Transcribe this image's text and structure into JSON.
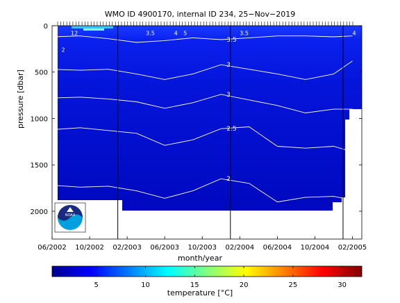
{
  "chart_data": {
    "type": "heatmap",
    "title": "WMO ID 4900170, internal ID 234, 25−Nov−2019",
    "xlabel": "month/year",
    "ylabel": "pressure [dbar]",
    "colorbar_label": "temperature [°C]",
    "x_tick_labels": [
      "06/2002",
      "10/2002",
      "02/2003",
      "06/2003",
      "10/2003",
      "02/2004",
      "06/2004",
      "10/2004",
      "02/2005"
    ],
    "y_tick_labels": [
      "0",
      "500",
      "1000",
      "1500",
      "2000"
    ],
    "y_ticks": [
      0,
      500,
      1000,
      1500,
      2000
    ],
    "ylim": [
      0,
      2300
    ],
    "x_range": [
      "2002-06",
      "2005-03"
    ],
    "colorbar_ticks": [
      5,
      10,
      15,
      20,
      25,
      30
    ],
    "colorbar_range": [
      0.5,
      32
    ],
    "colormap": "jet",
    "year_lines": [
      "2003-01",
      "2004-01",
      "2005-01"
    ],
    "contour_levels": [
      {
        "value": 2.0,
        "label": "2"
      },
      {
        "value": 2.5,
        "label": "2.5"
      },
      {
        "value": 3.0,
        "label": "3"
      },
      {
        "value": 3.5,
        "label": "3.5"
      },
      {
        "value": 4.0,
        "label": "4"
      },
      {
        "value": 5.0,
        "label": "5"
      },
      {
        "value": 10.0,
        "label": "10"
      },
      {
        "value": 12.0,
        "label": "12"
      }
    ],
    "contours_approx_pressure": {
      "3.5": {
        "months": [
          "2002-06",
          "2002-09",
          "2002-12",
          "2003-03",
          "2003-06",
          "2003-09",
          "2003-12",
          "2004-03",
          "2004-06",
          "2004-09",
          "2004-12",
          "2005-02"
        ],
        "pressure": [
          120,
          110,
          140,
          180,
          160,
          130,
          150,
          130,
          110,
          110,
          120,
          110
        ]
      },
      "3": {
        "months": [
          "2002-06",
          "2002-09",
          "2002-12",
          "2003-03",
          "2003-06",
          "2003-09",
          "2003-12",
          "2004-03",
          "2004-06",
          "2004-09",
          "2004-12",
          "2005-02"
        ],
        "pressure": [
          470,
          480,
          470,
          520,
          580,
          520,
          420,
          470,
          520,
          580,
          520,
          380
        ]
      },
      "3b": {
        "months": [
          "2002-06",
          "2002-09",
          "2002-12",
          "2003-03",
          "2003-06",
          "2003-09",
          "2003-12",
          "2004-03",
          "2004-06",
          "2004-09",
          "2004-12",
          "2005-02"
        ],
        "pressure": [
          780,
          770,
          790,
          820,
          890,
          830,
          740,
          800,
          860,
          940,
          900,
          900
        ]
      },
      "2.5": {
        "months": [
          "2002-06",
          "2002-09",
          "2002-12",
          "2003-03",
          "2003-06",
          "2003-09",
          "2003-12",
          "2004-03",
          "2004-06",
          "2004-09",
          "2004-12",
          "2005-02"
        ],
        "pressure": [
          1120,
          1100,
          1130,
          1160,
          1290,
          1230,
          1110,
          1090,
          1300,
          1320,
          1300,
          1360
        ]
      },
      "2": {
        "months": [
          "2002-06",
          "2002-09",
          "2002-12",
          "2003-03",
          "2003-06",
          "2003-09",
          "2003-12",
          "2004-03",
          "2004-06",
          "2004-09",
          "2004-12",
          "2005-02"
        ],
        "pressure": [
          1720,
          1740,
          1730,
          1780,
          1860,
          1780,
          1650,
          1700,
          1900,
          1850,
          1840,
          1880
        ]
      }
    },
    "grid": false
  },
  "logo_text": "NOAA"
}
